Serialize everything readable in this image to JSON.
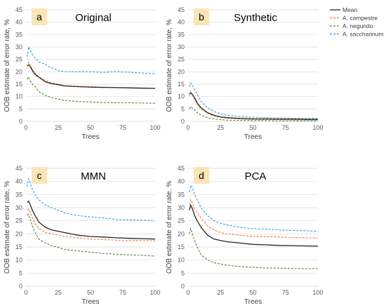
{
  "colors": {
    "mean": "#262626",
    "campestre": "#ed7d31",
    "negundo": "#548235",
    "saccharinum": "#29a3d6",
    "letter_bg": "#fbe5b6"
  },
  "legend": [
    {
      "key": "mean",
      "label": "Mean",
      "dash": "solid"
    },
    {
      "key": "campestre",
      "label": "A. campestre",
      "dash": "dashed"
    },
    {
      "key": "negundo",
      "label": "A. negundo",
      "dash": "dashed"
    },
    {
      "key": "saccharinum",
      "label": "A. saccharinum",
      "dash": "dashed"
    }
  ],
  "chart_data": [
    {
      "type": "line",
      "letter": "a",
      "title": "Original",
      "xlabel": "Trees",
      "ylabel": "OOB estimate of error rate, %",
      "xlim": [
        0,
        100
      ],
      "ylim": [
        0,
        45
      ],
      "xticks": [
        "0",
        "25",
        "50",
        "75",
        "100"
      ],
      "yticks": [
        "0",
        "5",
        "10",
        "15",
        "20",
        "25",
        "30",
        "35",
        "40",
        "45"
      ],
      "x": [
        1,
        2,
        3,
        5,
        7,
        10,
        15,
        20,
        25,
        30,
        40,
        50,
        60,
        70,
        80,
        90,
        100
      ],
      "series": [
        {
          "key": "mean",
          "values": [
            22.5,
            22.8,
            22.3,
            20.5,
            19.0,
            17.8,
            16.0,
            15.2,
            14.8,
            14.3,
            14.0,
            13.8,
            13.7,
            13.6,
            13.5,
            13.4,
            13.3
          ]
        },
        {
          "key": "campestre",
          "values": [
            22.0,
            24.0,
            23.0,
            21.0,
            19.5,
            18.0,
            16.5,
            15.5,
            15.0,
            14.5,
            14.2,
            14.0,
            13.8,
            13.7,
            13.6,
            13.5,
            13.4
          ]
        },
        {
          "key": "negundo",
          "values": [
            17.0,
            18.0,
            16.5,
            15.0,
            14.0,
            12.0,
            10.5,
            9.5,
            9.0,
            8.5,
            8.0,
            7.8,
            7.6,
            7.5,
            7.5,
            7.4,
            7.3
          ]
        },
        {
          "key": "saccharinum",
          "values": [
            26.0,
            30.0,
            29.0,
            27.0,
            25.5,
            24.0,
            23.0,
            21.5,
            20.5,
            20.0,
            20.0,
            20.0,
            19.8,
            20.0,
            19.8,
            19.5,
            19.2
          ]
        }
      ]
    },
    {
      "type": "line",
      "letter": "b",
      "title": "Synthetic",
      "xlabel": "Trees",
      "ylabel": "OOB estimate of error rate, %",
      "xlim": [
        0,
        100
      ],
      "ylim": [
        0,
        45
      ],
      "xticks": [
        "0",
        "25",
        "50",
        "75",
        "100"
      ],
      "yticks": [
        "0",
        "5",
        "10",
        "15",
        "20",
        "25",
        "30",
        "35",
        "40",
        "45"
      ],
      "x": [
        1,
        2,
        3,
        5,
        7,
        10,
        15,
        20,
        25,
        30,
        40,
        50,
        60,
        70,
        80,
        90,
        100
      ],
      "series": [
        {
          "key": "mean",
          "values": [
            11.0,
            11.5,
            11.0,
            9.5,
            7.5,
            5.5,
            3.5,
            2.5,
            1.8,
            1.5,
            1.2,
            1.0,
            1.0,
            0.9,
            0.9,
            0.8,
            0.8
          ]
        },
        {
          "key": "campestre",
          "values": [
            10.5,
            12.0,
            11.0,
            9.0,
            7.0,
            5.0,
            3.2,
            2.2,
            1.6,
            1.3,
            1.0,
            0.8,
            0.7,
            0.7,
            0.6,
            0.6,
            0.5
          ]
        },
        {
          "key": "negundo",
          "values": [
            5.0,
            6.0,
            5.5,
            4.5,
            3.5,
            2.5,
            1.5,
            1.0,
            0.7,
            0.5,
            0.4,
            0.3,
            0.3,
            0.2,
            0.2,
            0.2,
            0.2
          ]
        },
        {
          "key": "saccharinum",
          "values": [
            14.0,
            15.5,
            15.0,
            13.0,
            11.0,
            8.0,
            5.5,
            4.0,
            3.0,
            2.5,
            2.0,
            1.6,
            1.5,
            1.4,
            1.3,
            1.2,
            1.2
          ]
        }
      ]
    },
    {
      "type": "line",
      "letter": "c",
      "title": "MMN",
      "xlabel": "Trees",
      "ylabel": "OOB estimate of error rate, %",
      "xlim": [
        0,
        100
      ],
      "ylim": [
        0,
        45
      ],
      "xticks": [
        "0",
        "25",
        "50",
        "75",
        "100"
      ],
      "yticks": [
        "0",
        "5",
        "10",
        "15",
        "20",
        "25",
        "30",
        "35",
        "40",
        "45"
      ],
      "x": [
        1,
        2,
        3,
        5,
        7,
        10,
        15,
        20,
        25,
        30,
        40,
        50,
        60,
        70,
        80,
        90,
        100
      ],
      "series": [
        {
          "key": "mean",
          "values": [
            32.0,
            32.5,
            31.5,
            29.0,
            27.0,
            24.5,
            22.5,
            21.5,
            21.0,
            20.5,
            19.5,
            19.0,
            18.8,
            18.5,
            18.3,
            18.2,
            18.0
          ]
        },
        {
          "key": "campestre",
          "values": [
            29.0,
            29.5,
            28.5,
            26.0,
            24.0,
            22.0,
            20.5,
            20.0,
            19.5,
            19.0,
            18.5,
            18.0,
            17.8,
            17.6,
            17.5,
            17.5,
            17.3
          ]
        },
        {
          "key": "negundo",
          "values": [
            27.0,
            27.5,
            26.0,
            23.0,
            20.5,
            18.0,
            16.5,
            15.5,
            14.8,
            14.0,
            13.5,
            13.0,
            12.5,
            12.2,
            12.0,
            11.8,
            11.5
          ]
        },
        {
          "key": "saccharinum",
          "values": [
            38.0,
            41.0,
            40.0,
            37.0,
            35.0,
            33.0,
            31.0,
            30.0,
            29.0,
            28.0,
            27.0,
            26.5,
            26.0,
            25.5,
            25.3,
            25.2,
            25.0
          ]
        }
      ]
    },
    {
      "type": "line",
      "letter": "d",
      "title": "PCA",
      "xlabel": "Trees",
      "ylabel": "OOB estimate of error rate, %",
      "xlim": [
        0,
        100
      ],
      "ylim": [
        0,
        45
      ],
      "xticks": [
        "0",
        "25",
        "50",
        "75",
        "100"
      ],
      "yticks": [
        "0",
        "5",
        "10",
        "15",
        "20",
        "25",
        "30",
        "35",
        "40",
        "45"
      ],
      "x": [
        1,
        2,
        3,
        5,
        7,
        10,
        15,
        20,
        25,
        30,
        40,
        50,
        60,
        70,
        80,
        90,
        100
      ],
      "series": [
        {
          "key": "mean",
          "values": [
            29.0,
            31.0,
            30.0,
            27.0,
            25.0,
            22.5,
            19.5,
            18.0,
            17.5,
            17.0,
            16.5,
            16.0,
            15.8,
            15.6,
            15.5,
            15.4,
            15.3
          ]
        },
        {
          "key": "campestre",
          "values": [
            31.0,
            33.0,
            32.0,
            29.5,
            28.0,
            26.0,
            23.0,
            21.5,
            20.5,
            20.0,
            19.5,
            19.0,
            19.0,
            18.8,
            18.6,
            18.5,
            18.4
          ]
        },
        {
          "key": "negundo",
          "values": [
            20.0,
            22.0,
            20.5,
            17.5,
            15.0,
            12.0,
            10.0,
            9.0,
            8.5,
            8.0,
            7.5,
            7.2,
            7.0,
            6.9,
            6.8,
            6.7,
            6.7
          ]
        },
        {
          "key": "saccharinum",
          "values": [
            36.0,
            38.5,
            38.0,
            35.0,
            33.0,
            30.0,
            27.0,
            25.0,
            24.0,
            23.5,
            22.5,
            22.0,
            21.8,
            21.5,
            21.3,
            21.2,
            21.0
          ]
        }
      ]
    }
  ]
}
